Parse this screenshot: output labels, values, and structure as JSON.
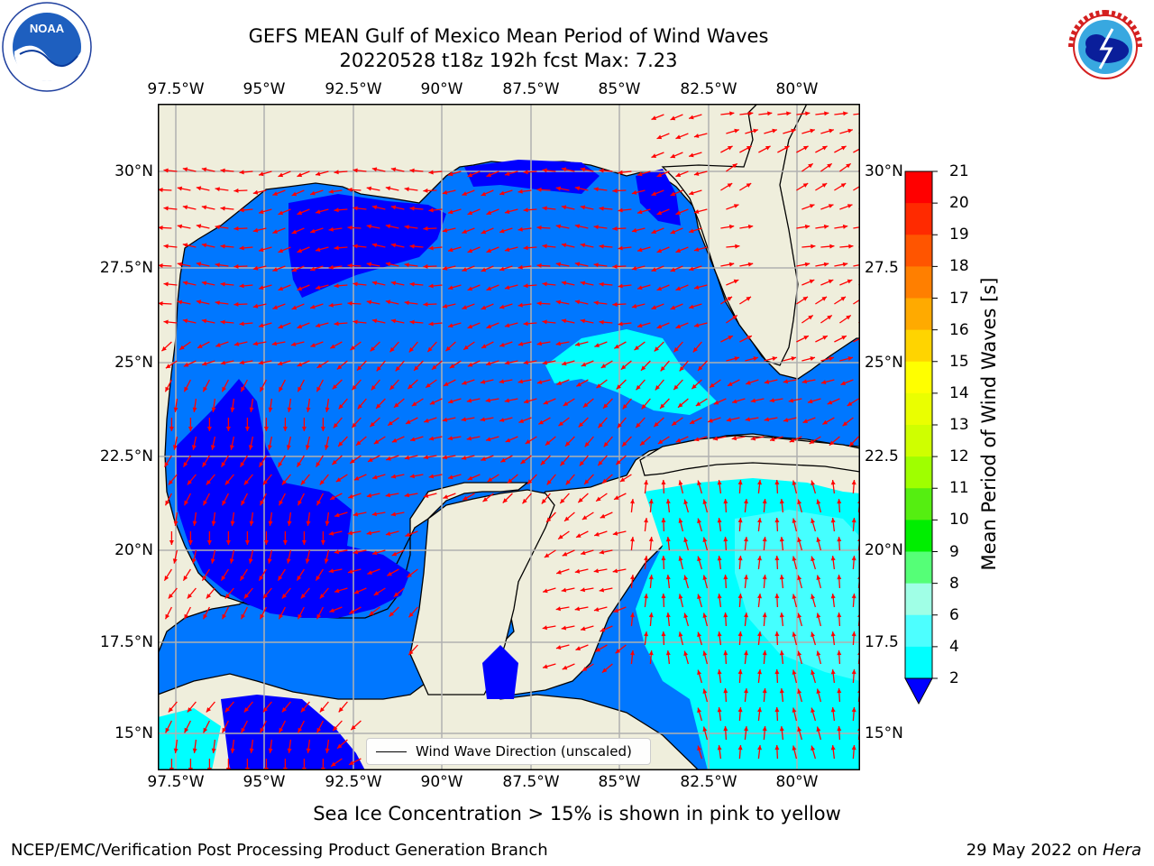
{
  "title": {
    "line1": "GEFS MEAN Gulf of Mexico Mean Period of Wind Waves",
    "line2": "20220528 t18z 192h fcst   Max: 7.23"
  },
  "map": {
    "lon_ticks": [
      "97.5°W",
      "95°W",
      "92.5°W",
      "90°W",
      "87.5°W",
      "85°W",
      "82.5°W",
      "80°W"
    ],
    "lat_ticks_left": [
      "30°N",
      "27.5°N",
      "25°N",
      "22.5°N",
      "20°N",
      "17.5°N",
      "15°N"
    ],
    "lat_ticks_right": [
      "30°N",
      "27.5",
      "25°N",
      "22.5",
      "20°N",
      "17.5",
      "15°N"
    ],
    "land_color": "#efeedc",
    "arrow_color": "#ff0000"
  },
  "colorbar": {
    "title": "Mean Period of Wind Waves [s]",
    "labels": [
      "21",
      "20",
      "19",
      "18",
      "17",
      "16",
      "15",
      "14",
      "13",
      "12",
      "11",
      "10",
      "9",
      "8",
      "6",
      "4",
      "2"
    ],
    "colors": [
      "#ff0000",
      "#ff2a00",
      "#ff5500",
      "#ff7f00",
      "#ffaa00",
      "#ffd400",
      "#ffff00",
      "#eaff00",
      "#cfff00",
      "#9fff00",
      "#55ee11",
      "#00ee00",
      "#55ff77",
      "#a0ffe6",
      "#4dffff",
      "#00ffff",
      "#0077ff"
    ],
    "under_color": "#0000ff"
  },
  "legend": {
    "label": "Wind Wave Direction (unscaled)"
  },
  "subtitle": "Sea Ice Concentration > 15% is shown in pink to yellow",
  "footer": {
    "left": "NCEP/EMC/Verification Post Processing Product Generation Branch",
    "right_prefix": "29 May 2022 on ",
    "right_host": "Hera"
  },
  "logos": {
    "noaa": "NOAA",
    "nws": "NATIONAL WEATHER SERVICE"
  }
}
